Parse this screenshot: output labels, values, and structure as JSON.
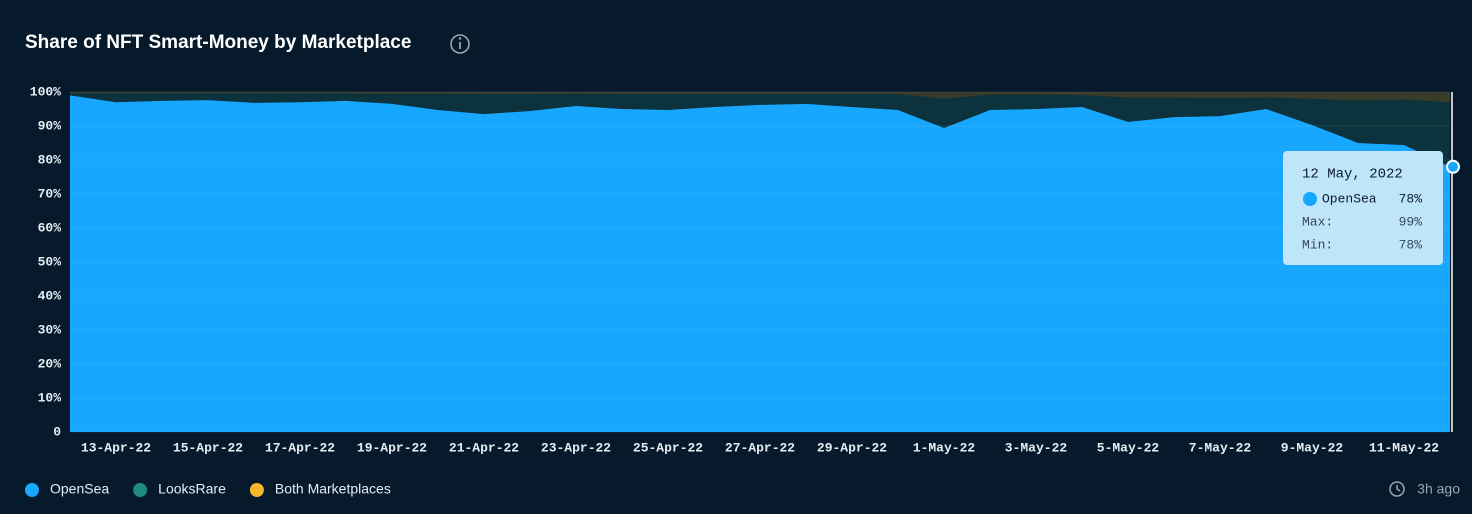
{
  "chart_data": {
    "type": "stacked-area",
    "title": "Share of NFT Smart-Money by Marketplace",
    "categories": [
      null,
      "13-Apr-22",
      null,
      "15-Apr-22",
      null,
      "17-Apr-22",
      null,
      "19-Apr-22",
      null,
      "21-Apr-22",
      null,
      "23-Apr-22",
      null,
      "25-Apr-22",
      null,
      "27-Apr-22",
      null,
      "29-Apr-22",
      null,
      "1-May-22",
      null,
      "3-May-22",
      null,
      "5-May-22",
      null,
      "7-May-22",
      null,
      "9-May-22",
      null,
      "11-May-22",
      null
    ],
    "series": [
      {
        "name": "OpenSea",
        "color": "#18a7ff",
        "values": [
          99,
          97,
          97.4,
          97.6,
          96.8,
          97,
          97.4,
          96.5,
          94.7,
          93.5,
          94.4,
          95.9,
          95,
          94.7,
          95.6,
          96.2,
          96.5,
          95.6,
          94.7,
          89.4,
          94.7,
          95,
          95.6,
          91.2,
          92.6,
          92.9,
          95,
          90.3,
          85,
          84.4,
          78
        ]
      },
      {
        "name": "LooksRare",
        "color": "#1f8a80",
        "values": [
          0.6,
          2.6,
          2.2,
          2,
          2.8,
          2.6,
          2.2,
          3,
          4.8,
          5.9,
          5,
          3.6,
          4.4,
          4.7,
          3.8,
          3.2,
          2.9,
          3.8,
          4.7,
          8.6,
          4.5,
          4.2,
          3.5,
          7.2,
          5.8,
          5.3,
          3.4,
          7.7,
          12.5,
          13.4,
          19
        ]
      },
      {
        "name": "Both Marketplaces",
        "color": "#f4b82a",
        "values": [
          0.4,
          0.4,
          0.4,
          0.4,
          0.4,
          0.4,
          0.4,
          0.5,
          0.5,
          0.6,
          0.6,
          0.5,
          0.6,
          0.6,
          0.6,
          0.6,
          0.6,
          0.6,
          0.6,
          2,
          0.8,
          0.8,
          0.9,
          1.6,
          1.6,
          1.8,
          1.6,
          2,
          2.5,
          2.2,
          3
        ]
      }
    ],
    "ylim": [
      0,
      100
    ],
    "yticks": [
      0,
      {
        "value": 10,
        "label": "10%"
      },
      {
        "value": 20,
        "label": "20%"
      },
      {
        "value": 30,
        "label": "30%"
      },
      {
        "value": 40,
        "label": "40%"
      },
      {
        "value": 50,
        "label": "50%"
      },
      {
        "value": 60,
        "label": "60%"
      },
      {
        "value": 70,
        "label": "70%"
      },
      {
        "value": 80,
        "label": "80%"
      },
      {
        "value": 90,
        "label": "90%"
      },
      {
        "value": 100,
        "label": "100%"
      }
    ],
    "grid": true,
    "legend": "bottom-left",
    "tooltip": {
      "date": "12 May, 2022",
      "series": "OpenSea",
      "value": "78%",
      "max_label": "Max:",
      "max": "99%",
      "min_label": "Min:",
      "min": "78%"
    },
    "updated": "3h ago"
  }
}
